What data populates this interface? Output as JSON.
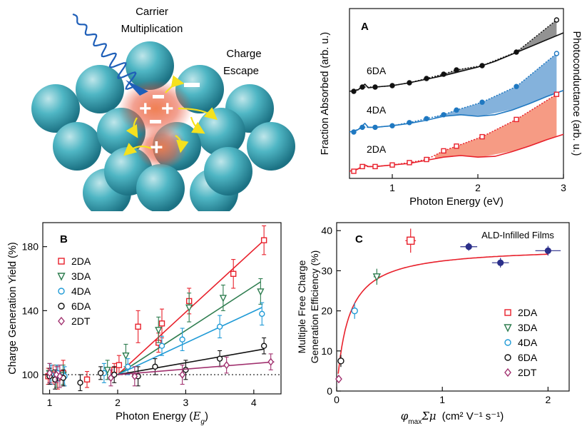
{
  "schematic": {
    "label_multiplication_line1": "Carrier",
    "label_multiplication_line2": "Multiplication",
    "label_escape_line1": "Charge",
    "label_escape_line2": "Escape",
    "colors": {
      "sphere": "#4fb6c4",
      "glow": "#e8553a",
      "arrow": "#f5e11e",
      "photon": "#1f5fb8"
    }
  },
  "chart_data": [
    {
      "panel": "A",
      "type": "line",
      "xlabel": "Photon Energy (eV)",
      "ylabel_left": "Fraction Absorbed (arb. u.)",
      "ylabel_right": "Photoconductance (arb. u.)",
      "xlim": [
        0.5,
        3.0
      ],
      "x_ticks": [
        "1",
        "2",
        "3"
      ],
      "y_ticks": "none",
      "series": [
        {
          "name": "6DA",
          "color": "#111111",
          "absorption": [
            [
              0.5,
              0.0
            ],
            [
              0.6,
              0.02
            ],
            [
              0.65,
              0.07
            ],
            [
              0.68,
              0.1
            ],
            [
              0.72,
              0.05
            ],
            [
              0.8,
              0.06
            ],
            [
              1.0,
              0.08
            ],
            [
              1.2,
              0.12
            ],
            [
              1.4,
              0.17
            ],
            [
              1.6,
              0.22
            ],
            [
              1.8,
              0.28
            ],
            [
              2.0,
              0.34
            ],
            [
              2.2,
              0.42
            ],
            [
              2.4,
              0.52
            ],
            [
              2.6,
              0.62
            ],
            [
              2.8,
              0.72
            ],
            [
              3.0,
              0.82
            ]
          ],
          "photoconductance": [
            [
              0.55,
              0.0
            ],
            [
              0.65,
              0.06
            ],
            [
              0.8,
              0.06
            ],
            [
              1.0,
              0.08
            ],
            [
              1.2,
              0.12
            ],
            [
              1.4,
              0.18
            ],
            [
              1.6,
              0.24
            ],
            [
              1.75,
              0.3
            ],
            [
              2.05,
              0.36
            ],
            [
              2.45,
              0.55
            ],
            [
              2.92,
              1.0
            ]
          ]
        },
        {
          "name": "4DA",
          "color": "#1f78c1",
          "absorption": [
            [
              0.5,
              0.0
            ],
            [
              0.6,
              0.03
            ],
            [
              0.65,
              0.08
            ],
            [
              0.68,
              0.11
            ],
            [
              0.72,
              0.06
            ],
            [
              0.8,
              0.06
            ],
            [
              1.0,
              0.08
            ],
            [
              1.2,
              0.11
            ],
            [
              1.4,
              0.15
            ],
            [
              1.6,
              0.2
            ],
            [
              1.8,
              0.22
            ],
            [
              2.0,
              0.2
            ],
            [
              2.2,
              0.22
            ],
            [
              2.4,
              0.28
            ],
            [
              2.6,
              0.36
            ],
            [
              2.8,
              0.45
            ],
            [
              3.0,
              0.53
            ]
          ],
          "photoconductance": [
            [
              0.55,
              0.0
            ],
            [
              0.65,
              0.06
            ],
            [
              0.8,
              0.06
            ],
            [
              1.0,
              0.08
            ],
            [
              1.2,
              0.12
            ],
            [
              1.4,
              0.17
            ],
            [
              1.6,
              0.22
            ],
            [
              1.75,
              0.28
            ],
            [
              2.05,
              0.38
            ],
            [
              2.45,
              0.58
            ],
            [
              2.92,
              1.0
            ]
          ]
        },
        {
          "name": "2DA",
          "color": "#e8202b",
          "absorption": [
            [
              0.5,
              0.0
            ],
            [
              0.6,
              0.03
            ],
            [
              0.68,
              0.08
            ],
            [
              0.72,
              0.06
            ],
            [
              0.8,
              0.06
            ],
            [
              1.0,
              0.08
            ],
            [
              1.2,
              0.1
            ],
            [
              1.4,
              0.14
            ],
            [
              1.6,
              0.18
            ],
            [
              1.8,
              0.2
            ],
            [
              2.0,
              0.18
            ],
            [
              2.2,
              0.19
            ],
            [
              2.4,
              0.25
            ],
            [
              2.6,
              0.32
            ],
            [
              2.8,
              0.4
            ],
            [
              3.0,
              0.47
            ]
          ],
          "photoconductance": [
            [
              0.55,
              0.0
            ],
            [
              0.65,
              0.06
            ],
            [
              0.8,
              0.06
            ],
            [
              1.0,
              0.08
            ],
            [
              1.2,
              0.11
            ],
            [
              1.4,
              0.15
            ],
            [
              1.6,
              0.26
            ],
            [
              1.75,
              0.32
            ],
            [
              2.05,
              0.44
            ],
            [
              2.45,
              0.66
            ],
            [
              2.92,
              0.98
            ]
          ]
        }
      ]
    },
    {
      "panel": "B",
      "type": "scatter",
      "xlabel_text": "Photon Energy (",
      "xlabel_var": "E",
      "xlabel_sub": "g",
      "xlabel_close": ")",
      "ylabel": "Charge Generation Yield (%)",
      "xlim": [
        0.9,
        4.4
      ],
      "ylim": [
        88,
        195
      ],
      "x_ticks": [
        1,
        2,
        3,
        4
      ],
      "y_ticks": [
        100,
        140,
        180
      ],
      "reference_line": 100,
      "legend_position": "top-left",
      "series": [
        {
          "name": "2DA",
          "marker": "square",
          "color": "#e8202b",
          "points": [
            [
              0.98,
              99,
              5
            ],
            [
              1.05,
              100,
              6
            ],
            [
              1.12,
              98,
              7
            ],
            [
              1.2,
              101,
              8
            ],
            [
              1.55,
              97,
              5
            ],
            [
              1.95,
              103,
              4
            ],
            [
              2.02,
              106,
              6
            ],
            [
              2.3,
              130,
              10
            ],
            [
              2.6,
              120,
              6
            ],
            [
              2.65,
              132,
              9
            ],
            [
              3.05,
              146,
              8
            ],
            [
              3.7,
              163,
              9
            ],
            [
              4.15,
              184,
              9
            ]
          ],
          "fit": [
            [
              2.0,
              100
            ],
            [
              4.15,
              184
            ]
          ]
        },
        {
          "name": "3DA",
          "marker": "triangle-down",
          "color": "#2e7d4f",
          "points": [
            [
              1.0,
              101,
              6
            ],
            [
              1.1,
              99,
              7
            ],
            [
              1.2,
              100,
              6
            ],
            [
              1.85,
              103,
              6
            ],
            [
              2.12,
              112,
              7
            ],
            [
              2.6,
              128,
              8
            ],
            [
              3.05,
              142,
              9
            ],
            [
              3.55,
              148,
              8
            ],
            [
              4.1,
              152,
              8
            ]
          ],
          "fit": [
            [
              2.0,
              100
            ],
            [
              4.1,
              158
            ]
          ]
        },
        {
          "name": "4DA",
          "marker": "circle",
          "color": "#1f9ad6",
          "points": [
            [
              1.02,
              100,
              6
            ],
            [
              1.12,
              101,
              5
            ],
            [
              1.22,
              99,
              6
            ],
            [
              1.8,
              101,
              6
            ],
            [
              2.15,
              105,
              5
            ],
            [
              2.65,
              118,
              6
            ],
            [
              2.95,
              122,
              7
            ],
            [
              3.5,
              130,
              7
            ],
            [
              4.12,
              138,
              7
            ]
          ],
          "fit": [
            [
              2.0,
              100
            ],
            [
              4.12,
              142
            ]
          ]
        },
        {
          "name": "6DA",
          "marker": "circle",
          "color": "#111111",
          "points": [
            [
              1.0,
              99,
              5
            ],
            [
              1.08,
              97,
              6
            ],
            [
              1.2,
              98,
              5
            ],
            [
              1.45,
              95,
              5
            ],
            [
              1.75,
              101,
              4
            ],
            [
              1.95,
              100,
              5
            ],
            [
              2.3,
              99,
              6
            ],
            [
              2.55,
              105,
              5
            ],
            [
              3.0,
              103,
              6
            ],
            [
              3.5,
              110,
              5
            ],
            [
              4.15,
              118,
              5
            ]
          ],
          "fit": [
            [
              2.0,
              100
            ],
            [
              4.15,
              116
            ]
          ]
        },
        {
          "name": "2DT",
          "marker": "diamond",
          "color": "#a0306e",
          "points": [
            [
              1.0,
              101,
              6
            ],
            [
              1.1,
              100,
              5
            ],
            [
              1.15,
              99,
              7
            ],
            [
              1.9,
              98,
              5
            ],
            [
              2.25,
              99,
              6
            ],
            [
              2.95,
              100,
              6
            ],
            [
              3.6,
              106,
              5
            ],
            [
              4.25,
              108,
              5
            ]
          ],
          "fit": [
            [
              2.0,
              100
            ],
            [
              4.3,
              108
            ]
          ]
        }
      ]
    },
    {
      "panel": "C",
      "type": "scatter",
      "title": "ALD-Infilled Films",
      "xlabel_var": "φ",
      "xlabel_sub": "max",
      "xlabel_rest": "Σμ",
      "xlabel_units": "(cm² V⁻¹ s⁻¹)",
      "ylabel_line1": "Multiple Free Charge",
      "ylabel_line2": "Generation Efficiency (%)",
      "xlim": [
        0,
        2.2
      ],
      "ylim": [
        0,
        42
      ],
      "x_ticks": [
        0,
        1,
        2
      ],
      "y_ticks": [
        0,
        10,
        20,
        30,
        40
      ],
      "legend_position": "bottom-right",
      "series": [
        {
          "name": "2DA",
          "marker": "square",
          "color": "#e8202b",
          "points": [
            [
              0.7,
              37.5,
              0.05,
              3
            ]
          ]
        },
        {
          "name": "3DA",
          "marker": "triangle-down",
          "color": "#2e7d4f",
          "points": [
            [
              0.38,
              28.5,
              0.03,
              2
            ]
          ]
        },
        {
          "name": "4DA",
          "marker": "circle",
          "color": "#1f9ad6",
          "points": [
            [
              0.17,
              20,
              0.02,
              2
            ]
          ]
        },
        {
          "name": "6DA",
          "marker": "circle",
          "color": "#111111",
          "points": [
            [
              0.04,
              7.5,
              0.02,
              1.5
            ]
          ]
        },
        {
          "name": "2DT",
          "marker": "diamond",
          "color": "#a0306e",
          "points": [
            [
              0.02,
              3,
              0.01,
              1
            ]
          ]
        },
        {
          "name": "",
          "marker": "filled-circle",
          "color": "#2b2f8a",
          "points": [
            [
              1.25,
              36,
              0.08,
              1
            ],
            [
              1.55,
              32,
              0.08,
              1.2
            ],
            [
              2.0,
              35,
              0.12,
              1.2
            ]
          ]
        }
      ],
      "fit": {
        "type": "saturating",
        "ymax": 36,
        "k": 0.11,
        "color": "#e8202b"
      }
    }
  ]
}
